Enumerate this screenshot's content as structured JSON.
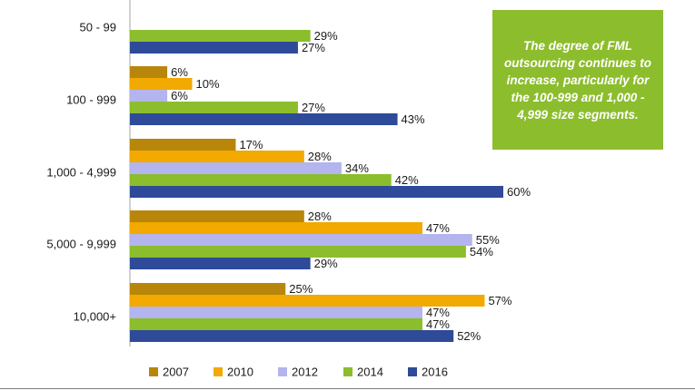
{
  "chart_data": {
    "type": "bar",
    "orientation": "horizontal",
    "categories": [
      "50 - 99",
      "100 - 999",
      "1,000 - 4,999",
      "5,000 - 9,999",
      "10,000+"
    ],
    "series": [
      {
        "name": "2007",
        "color": "#b8860b",
        "values": [
          null,
          6,
          17,
          28,
          25
        ],
        "labels": [
          "",
          "6%",
          "17%",
          "28%",
          "25%"
        ]
      },
      {
        "name": "2010",
        "color": "#f2a900",
        "values": [
          null,
          10,
          28,
          47,
          57
        ],
        "labels": [
          "",
          "10%",
          "28%",
          "47%",
          "57%"
        ]
      },
      {
        "name": "2012",
        "color": "#b4b4ee",
        "values": [
          null,
          6,
          34,
          55,
          47
        ],
        "labels": [
          "",
          "6%",
          "34%",
          "55%",
          "47%"
        ]
      },
      {
        "name": "2014",
        "color": "#8cbd2d",
        "values": [
          29,
          27,
          42,
          54,
          47
        ],
        "labels": [
          "29%",
          "27%",
          "42%",
          "54%",
          "47%"
        ]
      },
      {
        "name": "2016",
        "color": "#2e4a99",
        "values": [
          27,
          43,
          60,
          29,
          52
        ],
        "labels": [
          "27%",
          "43%",
          "60%",
          "29%",
          "52%"
        ]
      }
    ],
    "xlim": [
      0,
      60
    ],
    "grid": false,
    "legend_position": "bottom"
  },
  "callout": {
    "text": "The degree of FML outsourcing continues to increase, particularly for the 100-999 and 1,000 - 4,999 size segments.",
    "color": "#8cbd2d"
  }
}
